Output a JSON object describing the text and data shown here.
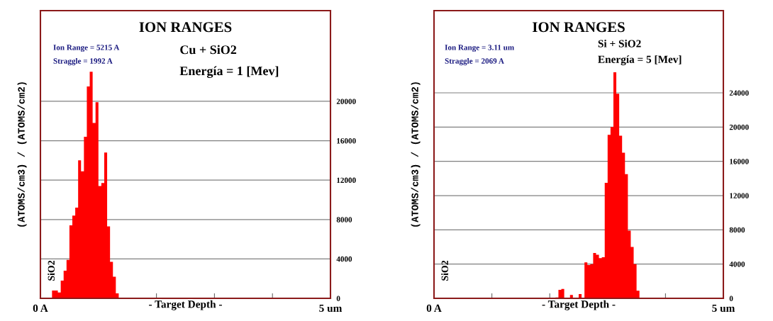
{
  "chart_data": [
    {
      "type": "histogram",
      "title": "ION RANGES",
      "xlabel": "- Target Depth -",
      "ylabel": "(ATOMS/cm3) / (ATOMS/cm2)",
      "annotations": [
        "Ion Range = 5215 A",
        "Straggle = 1992 A",
        "Cu + SiO2",
        "Energía = 1 [Mev]",
        "SiO2"
      ],
      "bins": [
        0.2,
        0.25,
        0.3,
        0.35,
        0.4,
        0.45,
        0.5,
        0.55,
        0.6,
        0.65,
        0.7,
        0.75,
        0.8,
        0.85,
        0.9,
        0.95,
        1.0,
        1.05,
        1.1,
        1.15,
        1.2,
        1.25,
        1.3,
        1.35
      ],
      "values": [
        800,
        800,
        600,
        1800,
        2800,
        3900,
        7400,
        8400,
        9200,
        14000,
        12900,
        16400,
        21500,
        23000,
        17800,
        19900,
        11400,
        11700,
        14800,
        7300,
        3700,
        2200,
        500
      ],
      "color": "#ff0000",
      "xlim": [
        0,
        5
      ],
      "ylim": [
        0,
        29200
      ],
      "xticks": [
        {
          "value": 0,
          "label": "0 A"
        },
        {
          "value": 1,
          "label": null
        },
        {
          "value": 2,
          "label": null
        },
        {
          "value": 3,
          "label": null
        },
        {
          "value": 4,
          "label": null
        },
        {
          "value": 5,
          "label": "5 um"
        }
      ],
      "yticks": [
        0,
        4000,
        8000,
        12000,
        16000,
        20000
      ],
      "grid": "y"
    },
    {
      "type": "histogram",
      "title": "ION RANGES",
      "xlabel": "- Target Depth -",
      "ylabel": "(ATOMS/cm3) / (ATOMS/cm2)",
      "annotations": [
        "Ion Range = 3.11 um",
        "Straggle = 2069 A",
        "Si + SiO2",
        "Energía = 5 [Mev]",
        "SiO2"
      ],
      "bins": [
        2.1,
        2.15,
        2.2,
        2.25,
        2.3,
        2.35,
        2.4,
        2.45,
        2.5,
        2.55,
        2.6,
        2.65,
        2.7,
        2.75,
        2.8,
        2.85,
        2.9,
        2.95,
        3.0,
        3.05,
        3.1,
        3.15,
        3.2,
        3.25,
        3.3,
        3.35,
        3.4,
        3.45,
        3.5,
        3.55
      ],
      "values": [
        100,
        1000,
        1100,
        0,
        0,
        400,
        0,
        0,
        500,
        0,
        4200,
        3900,
        4000,
        5300,
        5100,
        4700,
        4800,
        13500,
        19100,
        20000,
        26400,
        23900,
        19000,
        17000,
        14500,
        7900,
        6000,
        4000,
        900
      ],
      "color": "#ff0000",
      "xlim": [
        0,
        5
      ],
      "ylim": [
        0,
        33600
      ],
      "xticks": [
        {
          "value": 0,
          "label": "0 A"
        },
        {
          "value": 1,
          "label": null
        },
        {
          "value": 2,
          "label": null
        },
        {
          "value": 3,
          "label": null
        },
        {
          "value": 4,
          "label": null
        },
        {
          "value": 5,
          "label": "5 um"
        }
      ],
      "yticks": [
        0,
        4000,
        8000,
        12000,
        16000,
        20000,
        24000
      ],
      "grid": "y"
    }
  ]
}
